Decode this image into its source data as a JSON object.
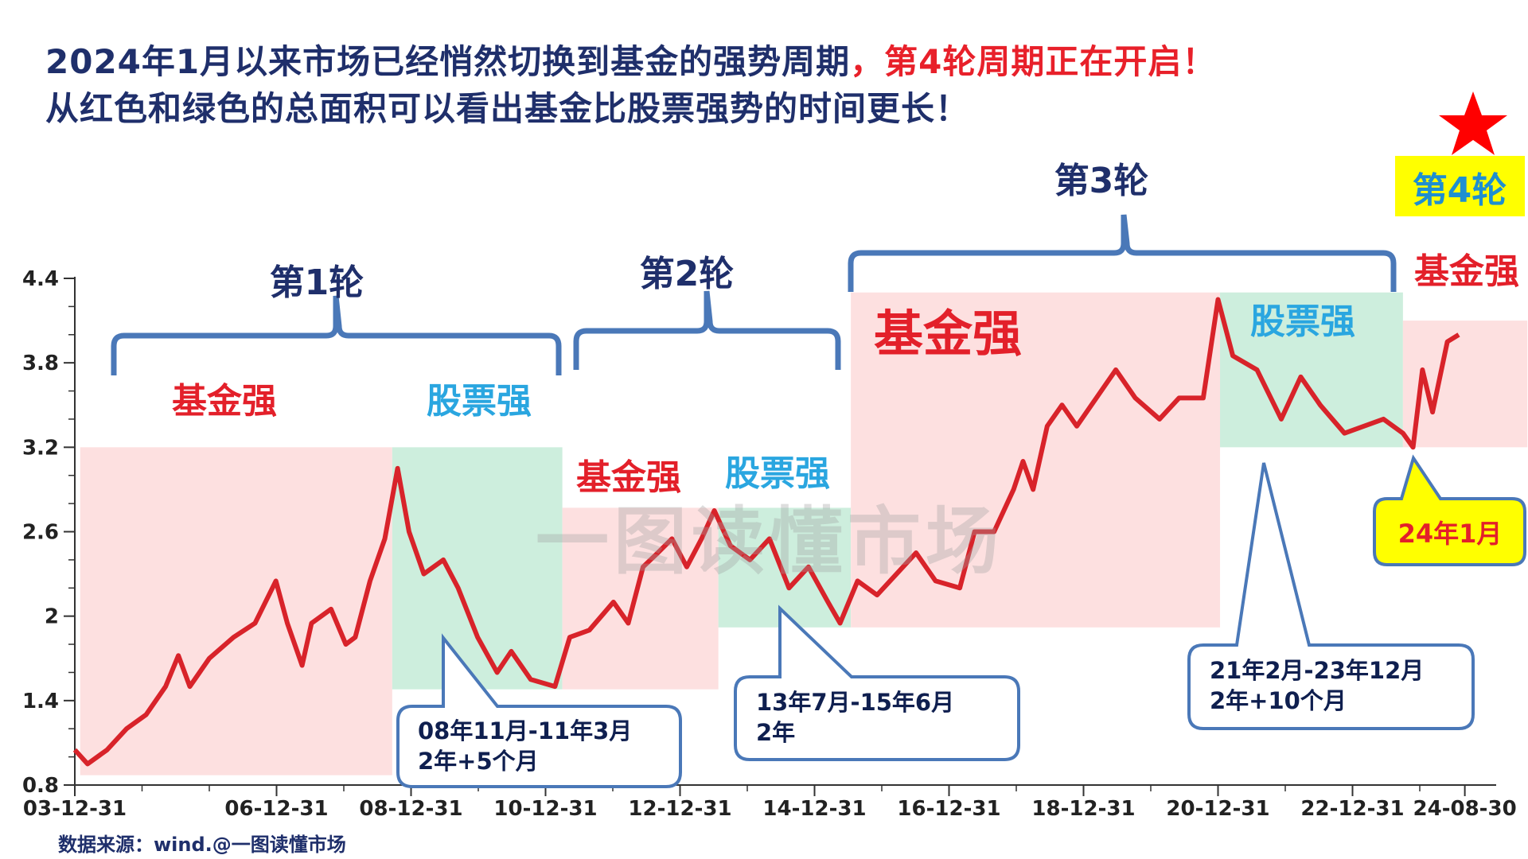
{
  "title": {
    "line1_main": "2024年1月以来市场已经悄然切换到基金的强势周期",
    "line1_highlight": "，第4轮周期正在开启！",
    "line2": "从红色和绿色的总面积可以看出基金比股票强势的时间更长！"
  },
  "rounds": [
    "第1轮",
    "第2轮",
    "第3轮",
    "第4轮"
  ],
  "phase_labels": {
    "fund": "基金强",
    "stock": "股票强"
  },
  "callouts": [
    {
      "line1": "08年11月-11年3月",
      "line2": "2年+5个月"
    },
    {
      "line1": "13年7月-15年6月",
      "line2": "2年"
    },
    {
      "line1": "21年2月-23年12月",
      "line2": "2年+10个月"
    }
  ],
  "start_callout": "24年1月",
  "watermark": "一图读懂市场",
  "source": "数据来源：wind.@一图读懂市场",
  "colors": {
    "line": "#d8232a",
    "fund_zone": "#fde0e0",
    "stock_zone": "#cdeedd",
    "brace": "#4a78b8",
    "highlight": "#ffff00",
    "star": "#ff0000"
  },
  "chart_data": {
    "type": "line",
    "title": "",
    "xlabel": "",
    "ylabel": "",
    "ylim": [
      0.8,
      4.4
    ],
    "yticks": [
      "0.8",
      "1.4",
      "2",
      "2.6",
      "3.2",
      "3.8",
      "4.4"
    ],
    "xticks": [
      {
        "label": "03-12-31",
        "x": 2004.0
      },
      {
        "label": "06-12-31",
        "x": 2007.0
      },
      {
        "label": "08-12-31",
        "x": 2009.0
      },
      {
        "label": "10-12-31",
        "x": 2011.0
      },
      {
        "label": "12-12-31",
        "x": 2013.0
      },
      {
        "label": "14-12-31",
        "x": 2015.0
      },
      {
        "label": "16-12-31",
        "x": 2017.0
      },
      {
        "label": "18-12-31",
        "x": 2019.0
      },
      {
        "label": "20-12-31",
        "x": 2021.0
      },
      {
        "label": "22-12-31",
        "x": 2023.0
      },
      {
        "label": "24-08-30",
        "x": 2024.67
      }
    ],
    "grid": false,
    "legend": "none",
    "series": [
      {
        "x": [
          2004.0,
          2004.19,
          2004.48,
          2004.77,
          2005.06,
          2005.35,
          2005.54,
          2005.71,
          2006.0,
          2006.36,
          2006.68,
          2006.99,
          2007.16,
          2007.38,
          2007.52,
          2007.81,
          2008.03,
          2008.17,
          2008.39,
          2008.61,
          2008.8,
          2008.97,
          2009.19,
          2009.48,
          2009.7,
          2009.99,
          2010.28,
          2010.49,
          2010.78,
          2011.14,
          2011.36,
          2011.65,
          2012.01,
          2012.23,
          2012.45,
          2012.67,
          2012.88,
          2013.1,
          2013.32,
          2013.51,
          2013.75,
          2014.04,
          2014.33,
          2014.62,
          2014.91,
          2015.2,
          2015.38,
          2015.64,
          2015.93,
          2016.22,
          2016.51,
          2016.8,
          2017.16,
          2017.38,
          2017.67,
          2017.96,
          2018.1,
          2018.25,
          2018.46,
          2018.68,
          2018.9,
          2019.19,
          2019.48,
          2019.77,
          2020.13,
          2020.42,
          2020.78,
          2021.0,
          2021.22,
          2021.58,
          2021.94,
          2022.23,
          2022.52,
          2022.88,
          2023.17,
          2023.46,
          2023.75,
          2023.9,
          2024.04,
          2024.19,
          2024.41,
          2024.58
        ],
        "values": [
          1.05,
          0.95,
          1.05,
          1.2,
          1.3,
          1.5,
          1.72,
          1.5,
          1.7,
          1.85,
          1.95,
          2.25,
          1.95,
          1.65,
          1.95,
          2.05,
          1.8,
          1.85,
          2.25,
          2.55,
          3.05,
          2.6,
          2.3,
          2.4,
          2.2,
          1.85,
          1.6,
          1.75,
          1.55,
          1.5,
          1.85,
          1.9,
          2.1,
          1.95,
          2.35,
          2.45,
          2.55,
          2.35,
          2.55,
          2.75,
          2.5,
          2.4,
          2.55,
          2.2,
          2.35,
          2.1,
          1.95,
          2.25,
          2.15,
          2.3,
          2.45,
          2.25,
          2.2,
          2.6,
          2.6,
          2.9,
          3.1,
          2.9,
          3.35,
          3.5,
          3.35,
          3.55,
          3.75,
          3.55,
          3.4,
          3.55,
          3.55,
          4.25,
          3.85,
          3.75,
          3.4,
          3.7,
          3.5,
          3.3,
          3.35,
          3.4,
          3.3,
          3.2,
          3.75,
          3.45,
          3.95,
          4.0
        ]
      }
    ],
    "regions": [
      {
        "kind": "fund",
        "x0": 2004.08,
        "x1": 2008.72,
        "y0": 0.87,
        "y1": 3.2
      },
      {
        "kind": "stock",
        "x0": 2008.72,
        "x1": 2011.25,
        "y0": 1.48,
        "y1": 3.2
      },
      {
        "kind": "fund",
        "x0": 2011.25,
        "x1": 2013.57,
        "y0": 1.48,
        "y1": 2.77
      },
      {
        "kind": "stock",
        "x0": 2013.57,
        "x1": 2015.54,
        "y0": 1.92,
        "y1": 2.77
      },
      {
        "kind": "fund",
        "x0": 2015.54,
        "x1": 2021.03,
        "y0": 1.92,
        "y1": 4.3
      },
      {
        "kind": "stock",
        "x0": 2021.03,
        "x1": 2023.75,
        "y0": 3.2,
        "y1": 4.3
      },
      {
        "kind": "fund",
        "x0": 2023.75,
        "x1": 2025.6,
        "y0": 3.2,
        "y1": 4.1
      }
    ]
  }
}
